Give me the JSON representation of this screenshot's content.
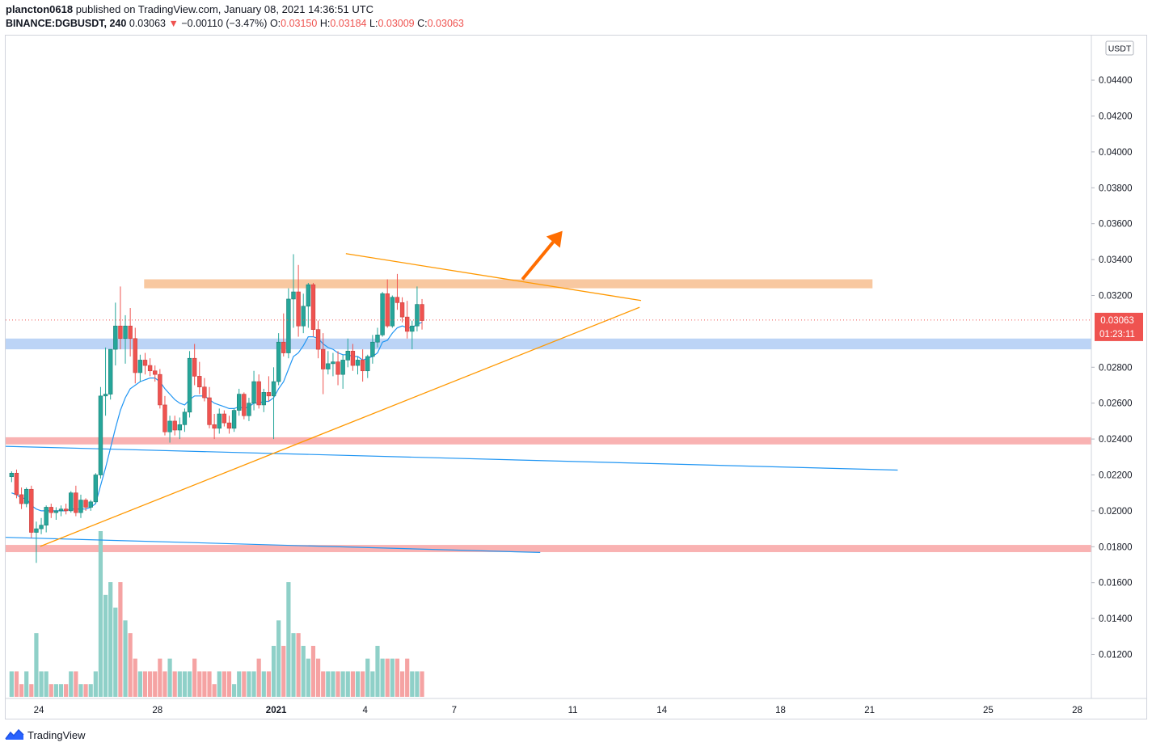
{
  "header": {
    "author": "plancton0618",
    "published_text": " published on TradingView.com, January 08, 2021 14:36:51 UTC",
    "symbol": "BINANCE:DGBUSDT, 240",
    "last": "0.03063",
    "change_arrow": "▼",
    "change": "−0.00110 (−3.47%)",
    "o_label": "O:",
    "o_value": "0.03150",
    "h_label": "H:",
    "h_value": "0.03184",
    "l_label": "L:",
    "l_value": "0.03009",
    "c_label": "C:",
    "c_value": "0.03063"
  },
  "footer": {
    "brand": "TradingView",
    "logo_icon": "tradingview-logo-icon"
  },
  "colors": {
    "bull": "#26a69a",
    "bear": "#ef5350",
    "ema": "#2196f3",
    "trendline": "#ff9800",
    "arrow": "#ff6d00",
    "resistance_zone": "#f8c8a0",
    "support_blue_zone": "#bcd4f6",
    "support_red_zone": "#f9b2b2",
    "vol_bull": "#8fd0c8",
    "vol_bear": "#f5a3a3"
  },
  "chart_data": {
    "type": "candlestick",
    "currency": "USDT",
    "price_labels": [
      "0.04400",
      "0.04200",
      "0.04000",
      "0.03800",
      "0.03600",
      "0.03400",
      "0.03200",
      "0.02800",
      "0.02600",
      "0.02400",
      "0.02200",
      "0.02000",
      "0.01800",
      "0.01600",
      "0.01400",
      "0.01200"
    ],
    "price_ticks": [
      0.044,
      0.042,
      0.04,
      0.038,
      0.036,
      0.034,
      0.032,
      0.028,
      0.026,
      0.024,
      0.022,
      0.02,
      0.018,
      0.016,
      0.014,
      0.012
    ],
    "ylim": [
      0.01,
      0.046
    ],
    "x_labels": [
      {
        "text": "24",
        "day": 0
      },
      {
        "text": "28",
        "day": 4
      },
      {
        "text": "2021",
        "day": 8,
        "bold": true
      },
      {
        "text": "4",
        "day": 11
      },
      {
        "text": "7",
        "day": 14
      },
      {
        "text": "11",
        "day": 18
      },
      {
        "text": "14",
        "day": 21
      },
      {
        "text": "18",
        "day": 25
      },
      {
        "text": "21",
        "day": 28
      },
      {
        "text": "25",
        "day": 32
      },
      {
        "text": "28",
        "day": 35
      }
    ],
    "candles_per_day": 6,
    "first_candle_day": -1,
    "last_price_label": "0.03063",
    "countdown_label": "01:23:11",
    "last_price": 0.03063,
    "candles": [
      [
        0.0219,
        0.0222,
        0.0216,
        0.0221
      ],
      [
        0.0221,
        0.0223,
        0.0207,
        0.0209
      ],
      [
        0.0209,
        0.0213,
        0.0201,
        0.0204
      ],
      [
        0.0204,
        0.0213,
        0.0202,
        0.0212
      ],
      [
        0.0212,
        0.0214,
        0.0185,
        0.0188
      ],
      [
        0.0188,
        0.0194,
        0.0171,
        0.019
      ],
      [
        0.019,
        0.0196,
        0.0187,
        0.0192
      ],
      [
        0.0192,
        0.0203,
        0.0188,
        0.0202
      ],
      [
        0.0202,
        0.0204,
        0.0196,
        0.0199
      ],
      [
        0.0199,
        0.0202,
        0.0195,
        0.02
      ],
      [
        0.02,
        0.0203,
        0.0197,
        0.0201
      ],
      [
        0.0201,
        0.0204,
        0.0198,
        0.02
      ],
      [
        0.02,
        0.0211,
        0.0199,
        0.021
      ],
      [
        0.021,
        0.0214,
        0.0197,
        0.0199
      ],
      [
        0.0199,
        0.0209,
        0.0196,
        0.0206
      ],
      [
        0.0206,
        0.0207,
        0.02,
        0.0202
      ],
      [
        0.0202,
        0.0206,
        0.02,
        0.0205
      ],
      [
        0.0205,
        0.0221,
        0.0204,
        0.022
      ],
      [
        0.022,
        0.0269,
        0.0218,
        0.0264
      ],
      [
        0.0264,
        0.0291,
        0.0253,
        0.0265
      ],
      [
        0.0265,
        0.0289,
        0.0262,
        0.029
      ],
      [
        0.029,
        0.0316,
        0.0281,
        0.0303
      ],
      [
        0.0303,
        0.0325,
        0.029,
        0.0296
      ],
      [
        0.0296,
        0.0309,
        0.0282,
        0.0303
      ],
      [
        0.0303,
        0.0313,
        0.0286,
        0.0296
      ],
      [
        0.0296,
        0.0302,
        0.0271,
        0.0277
      ],
      [
        0.0277,
        0.0287,
        0.0272,
        0.0284
      ],
      [
        0.0284,
        0.0288,
        0.0276,
        0.0281
      ],
      [
        0.0281,
        0.0285,
        0.0275,
        0.0278
      ],
      [
        0.0278,
        0.0281,
        0.0272,
        0.0276
      ],
      [
        0.0276,
        0.0279,
        0.0257,
        0.0259
      ],
      [
        0.0259,
        0.0264,
        0.0242,
        0.0244
      ],
      [
        0.0244,
        0.0253,
        0.0238,
        0.025
      ],
      [
        0.025,
        0.0253,
        0.0242,
        0.0245
      ],
      [
        0.0245,
        0.0252,
        0.024,
        0.0248
      ],
      [
        0.0248,
        0.0257,
        0.0244,
        0.0255
      ],
      [
        0.0255,
        0.0289,
        0.0252,
        0.0285
      ],
      [
        0.0285,
        0.0293,
        0.027,
        0.0275
      ],
      [
        0.0275,
        0.0283,
        0.0265,
        0.0269
      ],
      [
        0.0269,
        0.0274,
        0.0261,
        0.0263
      ],
      [
        0.0263,
        0.0269,
        0.0246,
        0.0248
      ],
      [
        0.0248,
        0.0254,
        0.024,
        0.0246
      ],
      [
        0.0246,
        0.0257,
        0.0243,
        0.0254
      ],
      [
        0.0254,
        0.0256,
        0.0247,
        0.0249
      ],
      [
        0.0249,
        0.0253,
        0.0243,
        0.0246
      ],
      [
        0.0246,
        0.0257,
        0.0244,
        0.0256
      ],
      [
        0.0256,
        0.0268,
        0.0253,
        0.0265
      ],
      [
        0.0265,
        0.0266,
        0.0251,
        0.0253
      ],
      [
        0.0253,
        0.0263,
        0.025,
        0.026
      ],
      [
        0.026,
        0.0278,
        0.0256,
        0.0272
      ],
      [
        0.0272,
        0.0276,
        0.0257,
        0.0259
      ],
      [
        0.0259,
        0.0268,
        0.0255,
        0.0266
      ],
      [
        0.0266,
        0.0275,
        0.0261,
        0.0264
      ],
      [
        0.0264,
        0.028,
        0.024,
        0.0272
      ],
      [
        0.0272,
        0.0299,
        0.027,
        0.0294
      ],
      [
        0.0294,
        0.031,
        0.0286,
        0.0288
      ],
      [
        0.0288,
        0.0324,
        0.0285,
        0.0318
      ],
      [
        0.0318,
        0.0343,
        0.0302,
        0.0322
      ],
      [
        0.0322,
        0.0337,
        0.0297,
        0.0303
      ],
      [
        0.0303,
        0.0321,
        0.0299,
        0.0314
      ],
      [
        0.0314,
        0.0327,
        0.0302,
        0.0326
      ],
      [
        0.0326,
        0.0327,
        0.0297,
        0.0301
      ],
      [
        0.0301,
        0.0306,
        0.0285,
        0.029
      ],
      [
        0.029,
        0.0299,
        0.0265,
        0.0279
      ],
      [
        0.0279,
        0.0289,
        0.0276,
        0.0282
      ],
      [
        0.0282,
        0.0288,
        0.0275,
        0.0283
      ],
      [
        0.0283,
        0.0289,
        0.027,
        0.0276
      ],
      [
        0.0276,
        0.0287,
        0.0268,
        0.0284
      ],
      [
        0.0284,
        0.0296,
        0.028,
        0.0289
      ],
      [
        0.0289,
        0.0293,
        0.0278,
        0.0281
      ],
      [
        0.0281,
        0.0286,
        0.0276,
        0.0284
      ],
      [
        0.0284,
        0.029,
        0.0272,
        0.0278
      ],
      [
        0.0278,
        0.0287,
        0.0274,
        0.0286
      ],
      [
        0.0286,
        0.0298,
        0.0282,
        0.0294
      ],
      [
        0.0294,
        0.0302,
        0.0291,
        0.0298
      ],
      [
        0.0298,
        0.0322,
        0.0297,
        0.0321
      ],
      [
        0.0321,
        0.0329,
        0.0302,
        0.0303
      ],
      [
        0.0303,
        0.032,
        0.0302,
        0.0319
      ],
      [
        0.0319,
        0.0332,
        0.0312,
        0.0316
      ],
      [
        0.0316,
        0.0319,
        0.0305,
        0.0308
      ],
      [
        0.0308,
        0.0317,
        0.0296,
        0.03
      ],
      [
        0.03,
        0.0306,
        0.029,
        0.0303
      ],
      [
        0.0303,
        0.0325,
        0.03,
        0.0315
      ],
      [
        0.0315,
        0.0318,
        0.0301,
        0.0306
      ]
    ],
    "ema": [
      0.021,
      0.0209,
      0.0207,
      0.0207,
      0.0203,
      0.0201,
      0.02,
      0.02,
      0.02,
      0.02,
      0.02,
      0.02,
      0.0201,
      0.0201,
      0.0201,
      0.0201,
      0.0202,
      0.0204,
      0.0214,
      0.0224,
      0.0235,
      0.0246,
      0.0256,
      0.0263,
      0.0268,
      0.027,
      0.0272,
      0.0273,
      0.0274,
      0.0274,
      0.0272,
      0.0268,
      0.0265,
      0.0262,
      0.026,
      0.0259,
      0.0262,
      0.0264,
      0.0264,
      0.0264,
      0.0262,
      0.026,
      0.0259,
      0.0258,
      0.0257,
      0.0257,
      0.0258,
      0.0257,
      0.0258,
      0.026,
      0.026,
      0.0261,
      0.0261,
      0.0263,
      0.0268,
      0.0272,
      0.0279,
      0.0286,
      0.0288,
      0.0292,
      0.0297,
      0.0297,
      0.0296,
      0.0293,
      0.0291,
      0.029,
      0.0288,
      0.0287,
      0.0287,
      0.0286,
      0.0286,
      0.0284,
      0.0285,
      0.0286,
      0.0288,
      0.0294,
      0.0295,
      0.0299,
      0.0302,
      0.0303,
      0.0302,
      0.0302,
      0.0304,
      0.0305
    ],
    "volume": [
      2,
      2,
      1,
      2,
      1,
      5,
      2,
      2,
      1,
      1,
      1,
      1,
      2,
      2,
      1,
      1,
      1,
      2,
      13,
      8,
      9,
      7,
      9,
      6,
      5,
      3,
      2,
      2,
      2,
      2,
      3,
      2,
      3,
      2,
      2,
      2,
      2,
      3,
      2,
      2,
      2,
      1,
      2,
      2,
      2,
      1,
      2,
      2,
      2,
      2,
      3,
      2,
      2,
      4,
      6,
      4,
      9,
      5,
      5,
      4,
      3,
      4,
      3,
      2,
      2,
      2,
      2,
      2,
      2,
      2,
      2,
      2,
      3,
      2,
      4,
      3,
      3,
      3,
      3,
      2,
      3,
      2,
      2,
      2
    ]
  },
  "drawings": {
    "resistance_zone": {
      "x1_day": 3.55,
      "x2_day": 28.1,
      "y_top": 0.0329,
      "y_bottom": 0.0324
    },
    "support_blue_zone": {
      "x1_day": -1.7,
      "x2_day": 36.5,
      "y_top": 0.0296,
      "y_bottom": 0.029
    },
    "support_red_zone_1": {
      "x1_day": -1.7,
      "x2_day": 36.5,
      "y_top": 0.0241,
      "y_bottom": 0.0237
    },
    "support_red_zone_2": {
      "x1_day": -1.7,
      "x2_day": 36.5,
      "y_top": 0.0181,
      "y_bottom": 0.0177
    },
    "triangle_upper": [
      [
        10.35,
        0.03433
      ],
      [
        20.3,
        0.03172
      ]
    ],
    "triangle_lower": [
      [
        0.05,
        0.01802
      ],
      [
        20.25,
        0.03134
      ]
    ],
    "blue_line_1": [
      [
        -1.7,
        0.02362
      ],
      [
        28.95,
        0.02227
      ]
    ],
    "blue_line_2": [
      [
        -1.7,
        0.01855
      ],
      [
        16.9,
        0.01768
      ]
    ],
    "breakout_arrow": [
      [
        16.3,
        0.0329
      ],
      [
        17.65,
        0.0356
      ]
    ]
  }
}
